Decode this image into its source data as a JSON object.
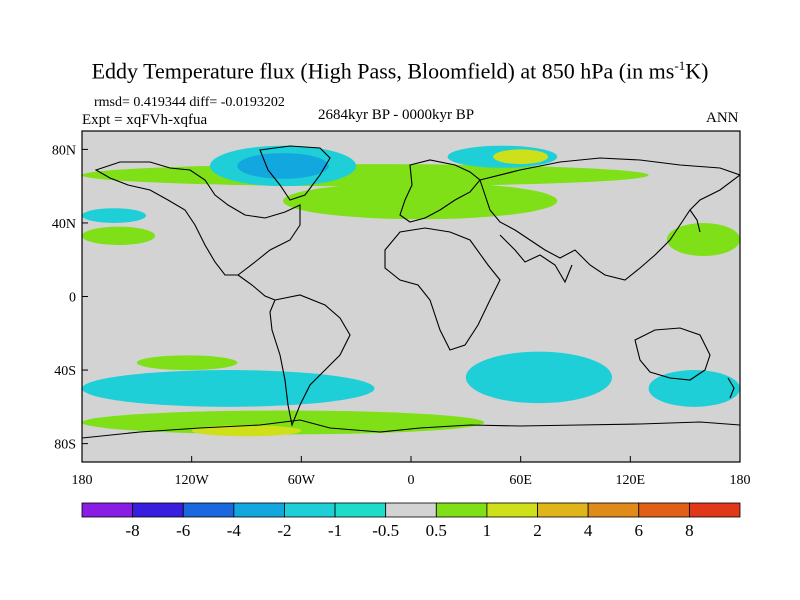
{
  "title": {
    "prefix": "Eddy Temperature flux (High Pass, Bloomfield) at 850 hPa (in ms",
    "sup": "-1",
    "suffix": "K)"
  },
  "rmsd_text": "rmsd= 0.419344 diff= -0.0193202",
  "expt_text": "Expt = xqFVh-xqfua",
  "period_text": "2684kyr BP - 0000kyr BP",
  "season_text": "ANN",
  "map": {
    "lon_range": [
      -180,
      180
    ],
    "lat_range": [
      -90,
      90
    ],
    "x_ticks": [
      {
        "lon": -180,
        "label": "180"
      },
      {
        "lon": -120,
        "label": "120W"
      },
      {
        "lon": -60,
        "label": "60W"
      },
      {
        "lon": 0,
        "label": "0"
      },
      {
        "lon": 60,
        "label": "60E"
      },
      {
        "lon": 120,
        "label": "120E"
      },
      {
        "lon": 180,
        "label": "180"
      }
    ],
    "y_ticks": [
      {
        "lat": 80,
        "label": "80N"
      },
      {
        "lat": 40,
        "label": "40N"
      },
      {
        "lat": 0,
        "label": "0"
      },
      {
        "lat": -40,
        "label": "40S"
      },
      {
        "lat": -80,
        "label": "80S"
      }
    ],
    "background_color": "#d3d3d3",
    "regions": [
      {
        "name": "arctic-green-band",
        "color": "#7fe018",
        "lon": [
          -180,
          130
        ],
        "lat": [
          60,
          72
        ]
      },
      {
        "name": "n-atlantic-green-band",
        "color": "#7fe018",
        "lon": [
          -70,
          80
        ],
        "lat": [
          42,
          62
        ]
      },
      {
        "name": "n-pacific-green-band",
        "color": "#7fe018",
        "lon": [
          -180,
          -140
        ],
        "lat": [
          28,
          38
        ]
      },
      {
        "name": "e-asia-green-band",
        "color": "#7fe018",
        "lon": [
          140,
          180
        ],
        "lat": [
          22,
          40
        ]
      },
      {
        "name": "s-pacific-green-band",
        "color": "#7fe018",
        "lon": [
          -150,
          -95
        ],
        "lat": [
          -32,
          -40
        ]
      },
      {
        "name": "greenland-cyan",
        "color": "#1ecfd8",
        "lon": [
          -110,
          -30
        ],
        "lat": [
          60,
          82
        ]
      },
      {
        "name": "siberia-cyan",
        "color": "#1ecfd8",
        "lon": [
          20,
          80
        ],
        "lat": [
          70,
          82
        ]
      },
      {
        "name": "n-pacific-cyan",
        "color": "#1ecfd8",
        "lon": [
          -180,
          -145
        ],
        "lat": [
          40,
          48
        ]
      },
      {
        "name": "s-indian-cyan",
        "color": "#1ecfd8",
        "lon": [
          30,
          110
        ],
        "lat": [
          -30,
          -58
        ]
      },
      {
        "name": "s-atlantic-cyan",
        "color": "#1ecfd8",
        "lon": [
          -180,
          -20
        ],
        "lat": [
          -40,
          -60
        ]
      },
      {
        "name": "australia-cyan",
        "color": "#1ecfd8",
        "lon": [
          130,
          180
        ],
        "lat": [
          -40,
          -60
        ]
      },
      {
        "name": "southern-ocean-green",
        "color": "#7fe018",
        "lon": [
          -180,
          40
        ],
        "lat": [
          -62,
          -75
        ]
      },
      {
        "name": "southern-ocean-yellow",
        "color": "#cde01a",
        "lon": [
          -120,
          -60
        ],
        "lat": [
          -70,
          -76
        ]
      },
      {
        "name": "greenland-blue",
        "color": "#13a7e0",
        "lon": [
          -95,
          -45
        ],
        "lat": [
          64,
          78
        ]
      },
      {
        "name": "barents-yellow",
        "color": "#cde01a",
        "lon": [
          45,
          75
        ],
        "lat": [
          72,
          80
        ]
      }
    ]
  },
  "colorbar": {
    "labels": [
      "-8",
      "-6",
      "-4",
      "-2",
      "-1",
      "-0.5",
      "0.5",
      "1",
      "2",
      "4",
      "6",
      "8"
    ],
    "colors": [
      "#8a1de5",
      "#3a1ee0",
      "#1a68e0",
      "#13a7e0",
      "#1ecfd8",
      "#1edcc8",
      "#d3d3d3",
      "#7fe018",
      "#cde01a",
      "#e0b51a",
      "#e08a1a",
      "#e06018",
      "#e03818"
    ]
  }
}
